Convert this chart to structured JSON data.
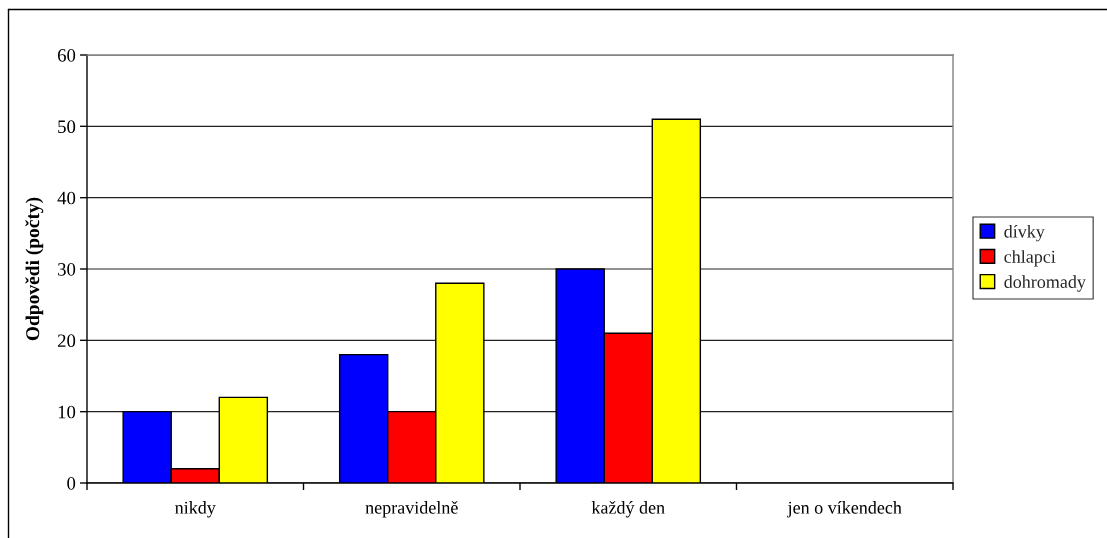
{
  "chart_data": {
    "type": "bar",
    "ylabel": "Odpovědi (počty)",
    "categories": [
      "nikdy",
      "nepravidelně",
      "každý den",
      "jen o víkendech"
    ],
    "series": [
      {
        "name": "dívky",
        "color": "#0000ff",
        "values": [
          10,
          18,
          30,
          null
        ]
      },
      {
        "name": "chlapci",
        "color": "#ff0000",
        "values": [
          2,
          10,
          21,
          null
        ]
      },
      {
        "name": "dohromady",
        "color": "#ffff00",
        "values": [
          12,
          28,
          51,
          null
        ]
      }
    ],
    "ylim": [
      0,
      60
    ],
    "yticks": [
      0,
      10,
      20,
      30,
      40,
      50,
      60
    ],
    "grid": "y",
    "legend": "right"
  }
}
